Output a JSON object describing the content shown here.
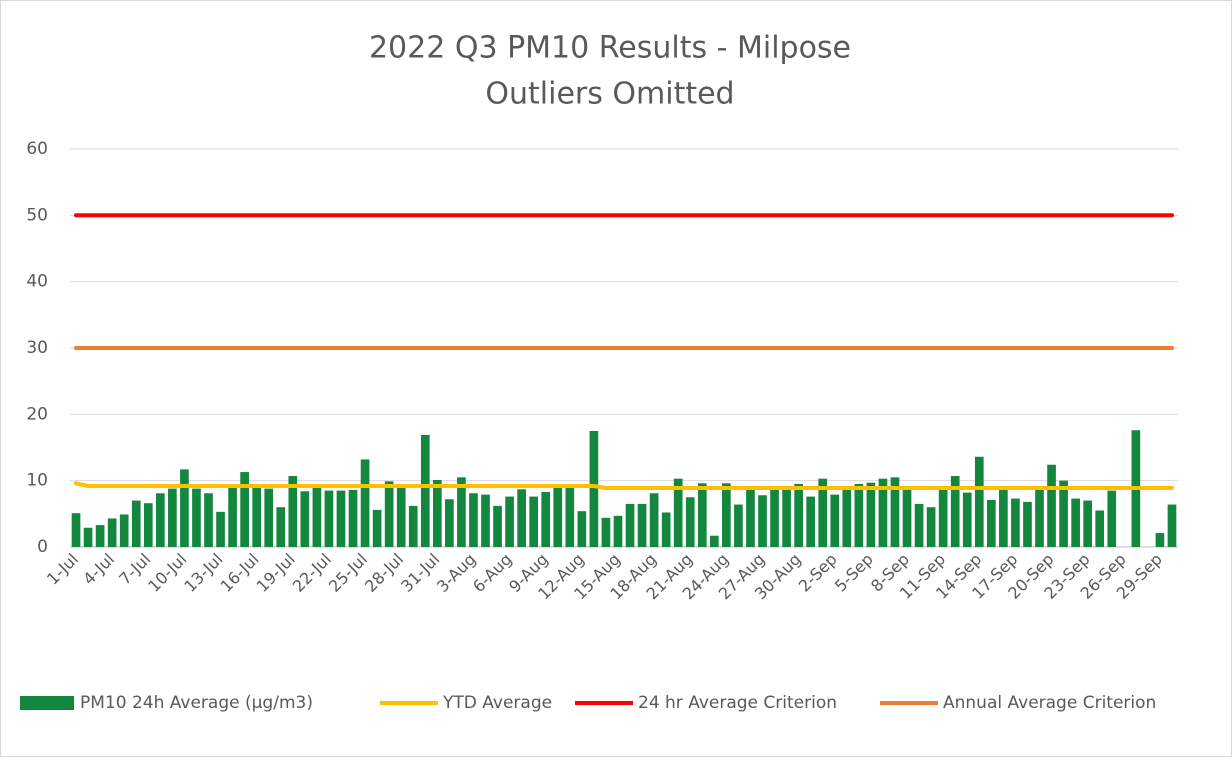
{
  "chart_data": {
    "type": "bar",
    "title_lines": [
      "2022 Q3 PM10 Results - Milpose",
      "Outliers Omitted"
    ],
    "categories": [
      "1-Jul",
      null,
      null,
      "4-Jul",
      null,
      null,
      "7-Jul",
      null,
      null,
      "10-Jul",
      null,
      null,
      "13-Jul",
      null,
      null,
      "16-Jul",
      null,
      null,
      "19-Jul",
      null,
      null,
      "22-Jul",
      null,
      null,
      "25-Jul",
      null,
      null,
      "28-Jul",
      null,
      null,
      "31-Jul",
      null,
      null,
      "3-Aug",
      null,
      null,
      "6-Aug",
      null,
      null,
      "9-Aug",
      null,
      null,
      "12-Aug",
      null,
      null,
      "15-Aug",
      null,
      null,
      "18-Aug",
      null,
      null,
      "21-Aug",
      null,
      null,
      "24-Aug",
      null,
      null,
      "27-Aug",
      null,
      null,
      "30-Aug",
      null,
      null,
      "2-Sep",
      null,
      null,
      "5-Sep",
      null,
      null,
      "8-Sep",
      null,
      null,
      "11-Sep",
      null,
      null,
      "14-Sep",
      null,
      null,
      "17-Sep",
      null,
      null,
      "20-Sep",
      null,
      null,
      "23-Sep",
      null,
      null,
      "26-Sep",
      null,
      null,
      "29-Sep",
      null
    ],
    "series": [
      {
        "name": "PM10 24h Average (µg/m3)",
        "kind": "bar",
        "color": "#12873d",
        "values": [
          5.1,
          2.9,
          3.3,
          4.3,
          4.9,
          7.0,
          6.6,
          8.1,
          8.8,
          11.7,
          8.8,
          8.1,
          5.3,
          9.0,
          11.3,
          9.0,
          8.8,
          6.0,
          10.7,
          8.4,
          9.0,
          8.5,
          8.5,
          8.6,
          13.2,
          5.6,
          9.9,
          9.2,
          6.2,
          16.9,
          10.1,
          7.2,
          10.5,
          8.1,
          7.9,
          6.2,
          7.6,
          8.7,
          7.6,
          8.3,
          8.9,
          9.0,
          5.4,
          17.5,
          4.4,
          4.7,
          6.5,
          6.5,
          8.1,
          5.2,
          10.3,
          7.5,
          9.6,
          1.7,
          9.6,
          6.4,
          8.6,
          7.8,
          8.6,
          8.9,
          9.5,
          7.6,
          10.3,
          7.9,
          8.6,
          9.5,
          9.7,
          10.3,
          10.5,
          9.1,
          6.5,
          6.0,
          8.8,
          10.7,
          8.2,
          13.6,
          7.1,
          8.8,
          7.3,
          6.8,
          8.6,
          12.4,
          10.0,
          7.3,
          7.0,
          5.5,
          8.5,
          null,
          17.6,
          null,
          2.1,
          6.4
        ]
      },
      {
        "name": "YTD Average",
        "kind": "line",
        "color": "#ffc000",
        "values": [
          9.6,
          9.2,
          9.2,
          9.2,
          9.2,
          9.2,
          9.2,
          9.2,
          9.2,
          9.2,
          9.2,
          9.2,
          9.2,
          9.2,
          9.2,
          9.2,
          9.2,
          9.2,
          9.2,
          9.2,
          9.2,
          9.2,
          9.2,
          9.2,
          9.2,
          9.2,
          9.2,
          9.2,
          9.2,
          9.2,
          9.2,
          9.2,
          9.2,
          9.2,
          9.2,
          9.2,
          9.2,
          9.2,
          9.2,
          9.2,
          9.2,
          9.2,
          9.2,
          9.2,
          8.9,
          8.9,
          8.9,
          8.9,
          8.9,
          8.9,
          8.9,
          8.9,
          8.9,
          8.9,
          8.9,
          8.9,
          8.9,
          8.9,
          8.9,
          8.9,
          8.9,
          8.9,
          8.9,
          8.9,
          8.9,
          8.9,
          8.9,
          8.9,
          8.9,
          8.9,
          8.9,
          8.9,
          8.9,
          8.9,
          8.9,
          8.9,
          8.9,
          8.9,
          8.9,
          8.9,
          8.9,
          8.9,
          8.9,
          8.9,
          8.9,
          8.9,
          8.9,
          8.9,
          8.9,
          8.9,
          8.9,
          8.9
        ]
      },
      {
        "name": "24 hr Average Criterion",
        "kind": "line",
        "color": "#ff0000",
        "values": [
          50,
          50,
          50,
          50,
          50,
          50,
          50,
          50,
          50,
          50,
          50,
          50,
          50,
          50,
          50,
          50,
          50,
          50,
          50,
          50,
          50,
          50,
          50,
          50,
          50,
          50,
          50,
          50,
          50,
          50,
          50,
          50,
          50,
          50,
          50,
          50,
          50,
          50,
          50,
          50,
          50,
          50,
          50,
          50,
          50,
          50,
          50,
          50,
          50,
          50,
          50,
          50,
          50,
          50,
          50,
          50,
          50,
          50,
          50,
          50,
          50,
          50,
          50,
          50,
          50,
          50,
          50,
          50,
          50,
          50,
          50,
          50,
          50,
          50,
          50,
          50,
          50,
          50,
          50,
          50,
          50,
          50,
          50,
          50,
          50,
          50,
          50,
          50,
          50,
          50,
          50,
          50
        ]
      },
      {
        "name": "Annual Average Criterion",
        "kind": "line",
        "color": "#ed7d31",
        "values": [
          30,
          30,
          30,
          30,
          30,
          30,
          30,
          30,
          30,
          30,
          30,
          30,
          30,
          30,
          30,
          30,
          30,
          30,
          30,
          30,
          30,
          30,
          30,
          30,
          30,
          30,
          30,
          30,
          30,
          30,
          30,
          30,
          30,
          30,
          30,
          30,
          30,
          30,
          30,
          30,
          30,
          30,
          30,
          30,
          30,
          30,
          30,
          30,
          30,
          30,
          30,
          30,
          30,
          30,
          30,
          30,
          30,
          30,
          30,
          30,
          30,
          30,
          30,
          30,
          30,
          30,
          30,
          30,
          30,
          30,
          30,
          30,
          30,
          30,
          30,
          30,
          30,
          30,
          30,
          30,
          30,
          30,
          30,
          30,
          30,
          30,
          30,
          30,
          30,
          30,
          30,
          30
        ]
      }
    ],
    "ylim": [
      0,
      60
    ],
    "yticks": [
      0,
      10,
      20,
      30,
      40,
      50,
      60
    ],
    "grid": true,
    "legend": "bottom"
  }
}
